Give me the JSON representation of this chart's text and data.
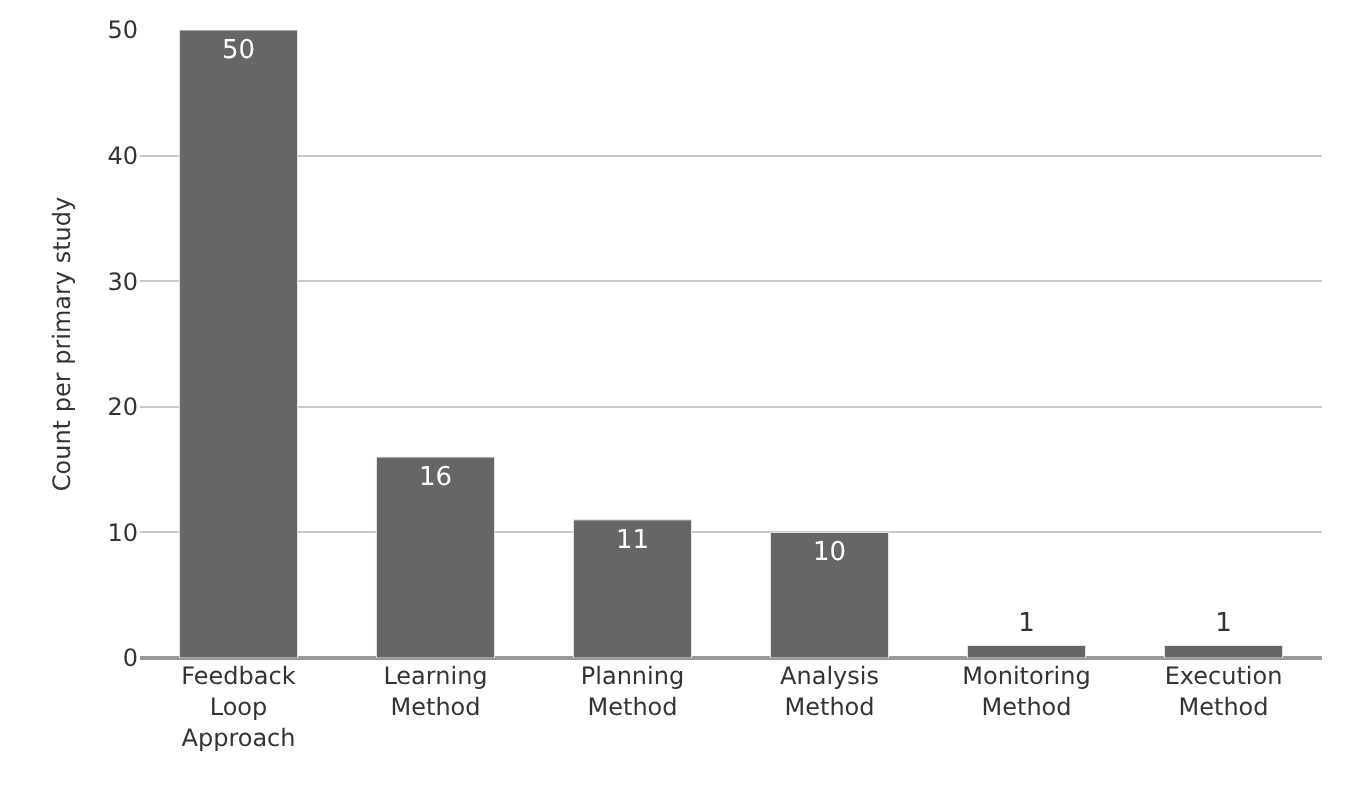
{
  "chart_data": {
    "type": "bar",
    "ylabel": "Count per primary study",
    "categories": [
      "Feedback Loop Approach",
      "Learning Method",
      "Planning Method",
      "Analysis Method",
      "Monitoring Method",
      "Execution Method"
    ],
    "values": [
      50,
      16,
      11,
      10,
      1,
      1
    ],
    "color": "#666666",
    "ylim": [
      0,
      50
    ],
    "yticks": [
      0,
      10,
      20,
      30,
      40,
      50
    ],
    "grid": "y",
    "data_labels": true
  }
}
